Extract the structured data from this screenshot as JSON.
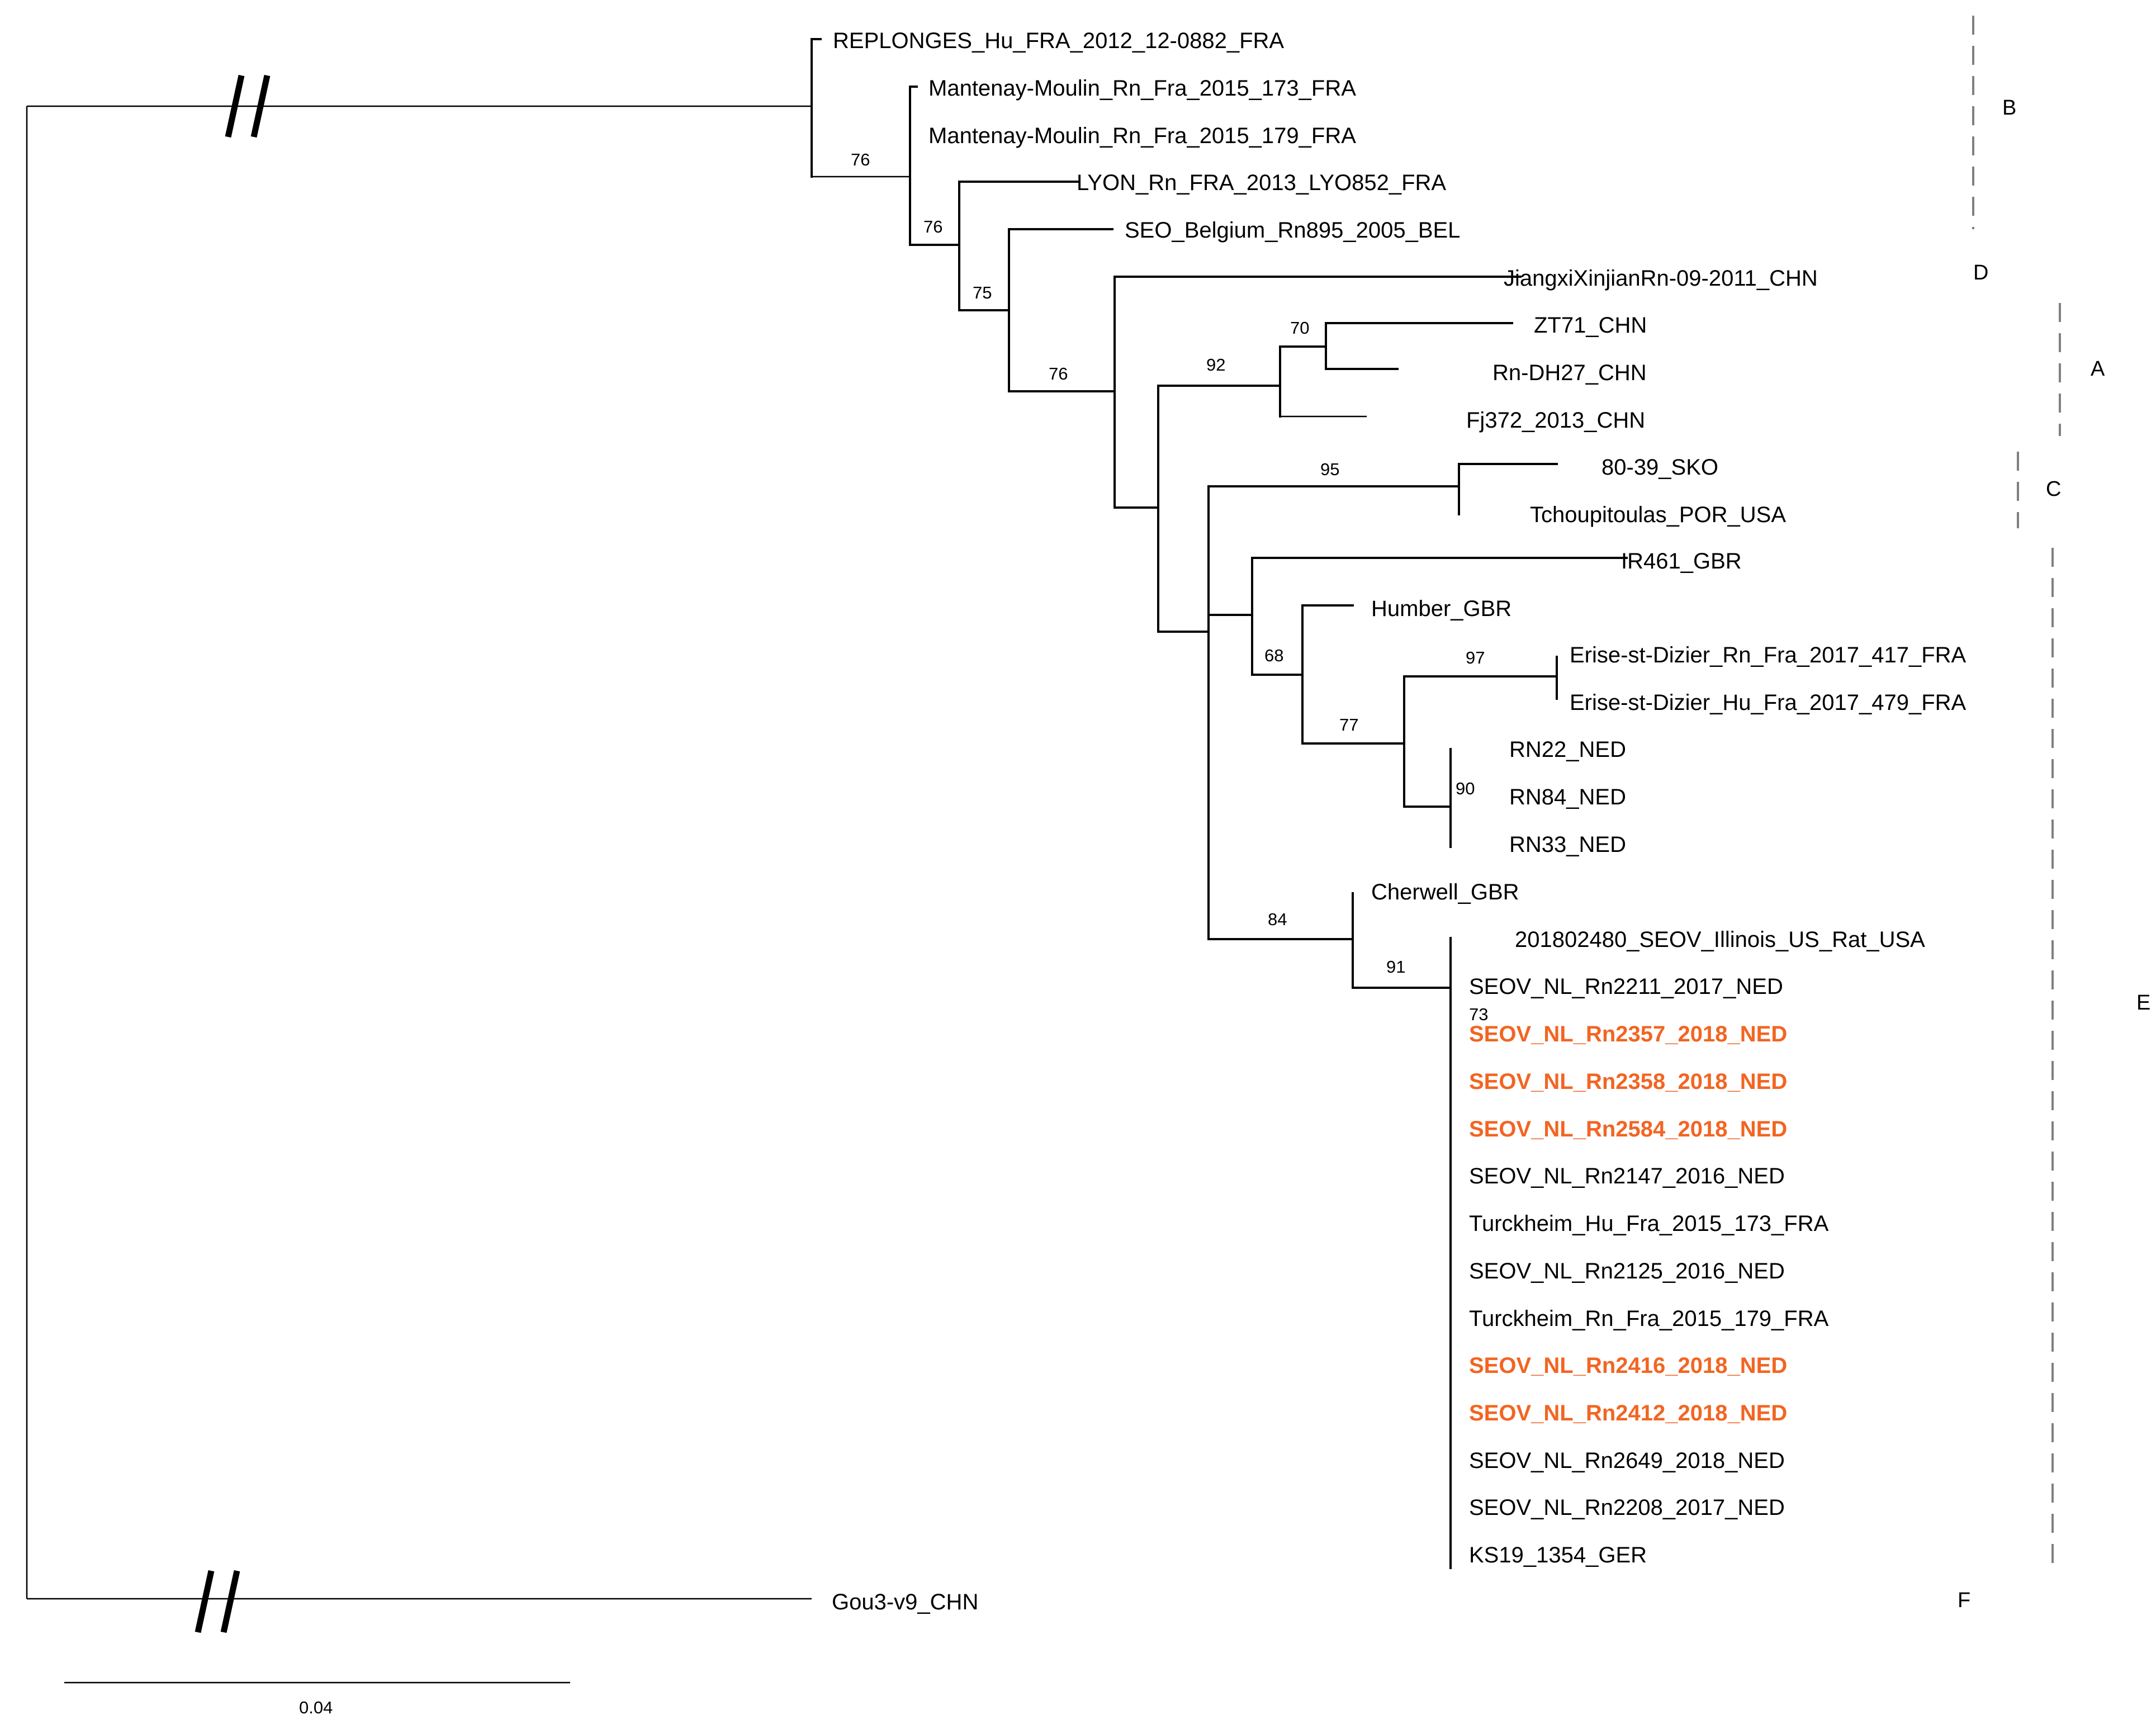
{
  "figure": {
    "type": "phylogenetic-tree",
    "highlight_color": "#f26522",
    "line_color": "#000000",
    "clade_bar_color": "#808080"
  },
  "leaves": [
    {
      "label": "REPLONGES_Hu_FRA_2012_12-0882_FRA",
      "highlight": false
    },
    {
      "label": "Mantenay-Moulin_Rn_Fra_2015_173_FRA",
      "highlight": false
    },
    {
      "label": "Mantenay-Moulin_Rn_Fra_2015_179_FRA",
      "highlight": false
    },
    {
      "label": "LYON_Rn_FRA_2013_LYO852_FRA",
      "highlight": false
    },
    {
      "label": "SEO_Belgium_Rn895_2005_BEL",
      "highlight": false
    },
    {
      "label": "JiangxiXinjianRn-09-2011_CHN",
      "highlight": false
    },
    {
      "label": "ZT71_CHN",
      "highlight": false
    },
    {
      "label": "Rn-DH27_CHN",
      "highlight": false
    },
    {
      "label": "Fj372_2013_CHN",
      "highlight": false
    },
    {
      "label": "80-39_SKO",
      "highlight": false
    },
    {
      "label": "Tchoupitoulas_POR_USA",
      "highlight": false
    },
    {
      "label": "IR461_GBR",
      "highlight": false
    },
    {
      "label": "Humber_GBR",
      "highlight": false
    },
    {
      "label": "Erise-st-Dizier_Rn_Fra_2017_417_FRA",
      "highlight": false
    },
    {
      "label": "Erise-st-Dizier_Hu_Fra_2017_479_FRA",
      "highlight": false
    },
    {
      "label": "RN22_NED",
      "highlight": false
    },
    {
      "label": "RN84_NED",
      "highlight": false
    },
    {
      "label": "RN33_NED",
      "highlight": false
    },
    {
      "label": "Cherwell_GBR",
      "highlight": false
    },
    {
      "label": "201802480_SEOV_Illinois_US_Rat_USA",
      "highlight": false
    },
    {
      "label": "SEOV_NL_Rn2211_2017_NED",
      "highlight": false
    },
    {
      "label": "SEOV_NL_Rn2357_2018_NED",
      "highlight": true
    },
    {
      "label": "SEOV_NL_Rn2358_2018_NED",
      "highlight": true
    },
    {
      "label": "SEOV_NL_Rn2584_2018_NED",
      "highlight": true
    },
    {
      "label": "SEOV_NL_Rn2147_2016_NED",
      "highlight": false
    },
    {
      "label": "Turckheim_Hu_Fra_2015_173_FRA",
      "highlight": false
    },
    {
      "label": "SEOV_NL_Rn2125_2016_NED",
      "highlight": false
    },
    {
      "label": "Turckheim_Rn_Fra_2015_179_FRA",
      "highlight": false
    },
    {
      "label": "SEOV_NL_Rn2416_2018_NED",
      "highlight": true
    },
    {
      "label": "SEOV_NL_Rn2412_2018_NED",
      "highlight": true
    },
    {
      "label": "SEOV_NL_Rn2649_2018_NED",
      "highlight": false
    },
    {
      "label": "SEOV_NL_Rn2208_2017_NED",
      "highlight": false
    },
    {
      "label": "KS19_1354_GER",
      "highlight": false
    },
    {
      "label": "Gou3-v9_CHN",
      "highlight": false
    }
  ],
  "bootstrap_values": [
    "76",
    "76",
    "75",
    "76",
    "70",
    "92",
    "95",
    "68",
    "97",
    "77",
    "90",
    "84",
    "91",
    "73"
  ],
  "clades": [
    "B",
    "D",
    "A",
    "C",
    "E",
    "F"
  ],
  "scale_bar": {
    "label": "0.04"
  }
}
